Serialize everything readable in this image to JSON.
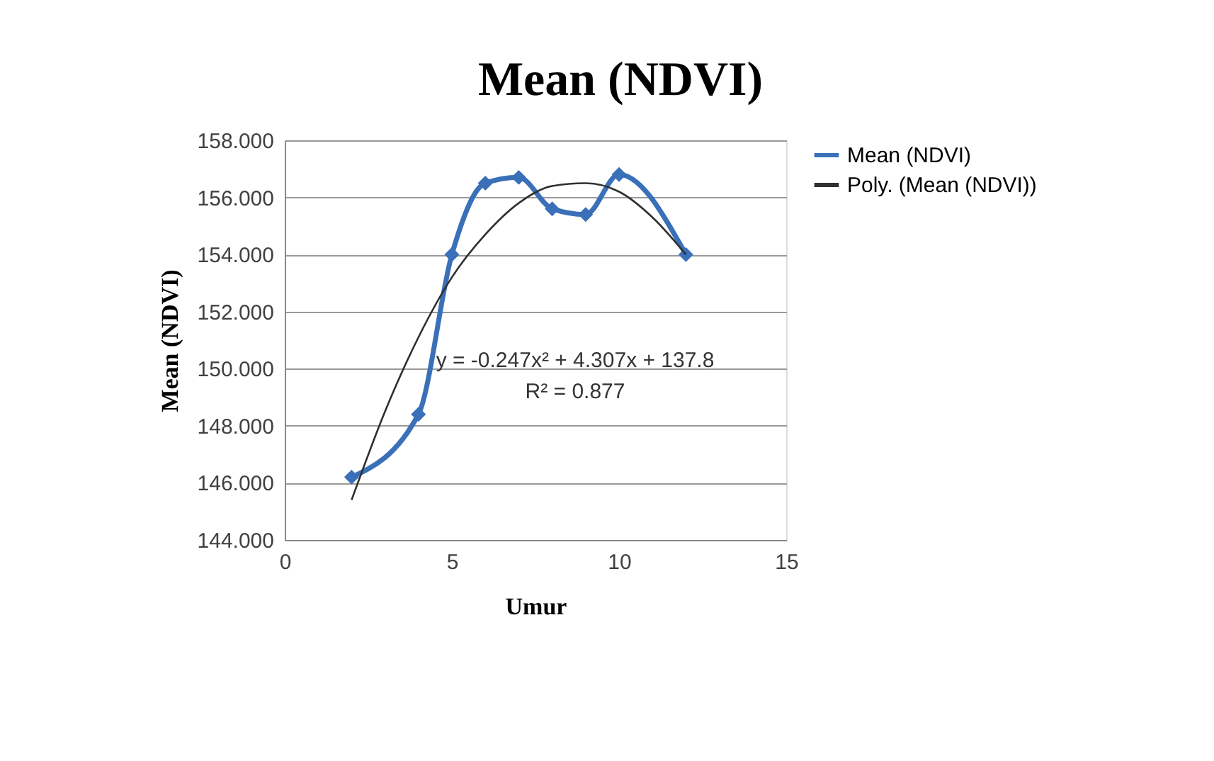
{
  "chart_data": {
    "type": "line",
    "title": "Mean (NDVI)",
    "xlabel": "Umur",
    "ylabel": "Mean (NDVI)",
    "series": [
      {
        "name": "Mean (NDVI)",
        "color": "#3a70b8",
        "x": [
          2,
          4,
          5,
          6,
          7,
          8,
          9,
          10,
          12
        ],
        "values": [
          146.2,
          148.4,
          154.0,
          156.5,
          156.7,
          155.6,
          155.4,
          156.8,
          154.0
        ],
        "marker": "diamond",
        "line_style": "solid"
      },
      {
        "name": "Poly. (Mean (NDVI))",
        "color": "#303030",
        "x": [
          2,
          3,
          4,
          5,
          6,
          7,
          8,
          9,
          10,
          11,
          12
        ],
        "values": [
          145.4,
          148.5,
          151.1,
          153.2,
          154.7,
          155.8,
          156.4,
          156.5,
          156.2,
          155.3,
          154.0
        ],
        "marker": "none",
        "line_style": "solid"
      }
    ],
    "xlim": [
      0,
      15
    ],
    "xticks": [
      0,
      5,
      10,
      15
    ],
    "ylim": [
      144,
      158
    ],
    "yticks": [
      {
        "value": 144,
        "label": "144.000"
      },
      {
        "value": 146,
        "label": "146.000"
      },
      {
        "value": 148,
        "label": "148.000"
      },
      {
        "value": 150,
        "label": "150.000"
      },
      {
        "value": 152,
        "label": "152.000"
      },
      {
        "value": 154,
        "label": "154.000"
      },
      {
        "value": 156,
        "label": "156.000"
      },
      {
        "value": 158,
        "label": "158.000"
      }
    ],
    "grid": "y",
    "legend": "right",
    "annotations": [
      "y = -0.247x² + 4.307x + 137.8",
      "R² = 0.877"
    ]
  }
}
